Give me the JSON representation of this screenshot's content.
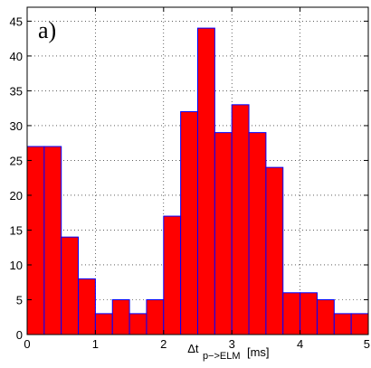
{
  "chart_data": {
    "type": "bar",
    "panel_label": "a)",
    "xlabel_main": "Δt",
    "xlabel_sub": "p−>ELM",
    "xlabel_unit": "[ms]",
    "xlim": [
      0,
      5
    ],
    "ylim": [
      0,
      47
    ],
    "bin_width": 0.25,
    "bin_starts": [
      0,
      0.25,
      0.5,
      0.75,
      1.0,
      1.25,
      1.5,
      1.75,
      2.0,
      2.25,
      2.5,
      2.75,
      3.0,
      3.25,
      3.5,
      3.75,
      4.0,
      4.25,
      4.5,
      4.75
    ],
    "values": [
      27,
      27,
      14,
      8,
      3,
      5,
      3,
      5,
      17,
      32,
      44,
      29,
      33,
      29,
      24,
      6,
      6,
      5,
      3,
      3
    ],
    "xticks": [
      0,
      1,
      2,
      3,
      4,
      5
    ],
    "yticks": [
      0,
      5,
      10,
      15,
      20,
      25,
      30,
      35,
      40,
      45
    ],
    "grid": true,
    "grid_style": "dotted",
    "bar_color": "#ff0000",
    "bar_edge_color": "#0000ff"
  }
}
